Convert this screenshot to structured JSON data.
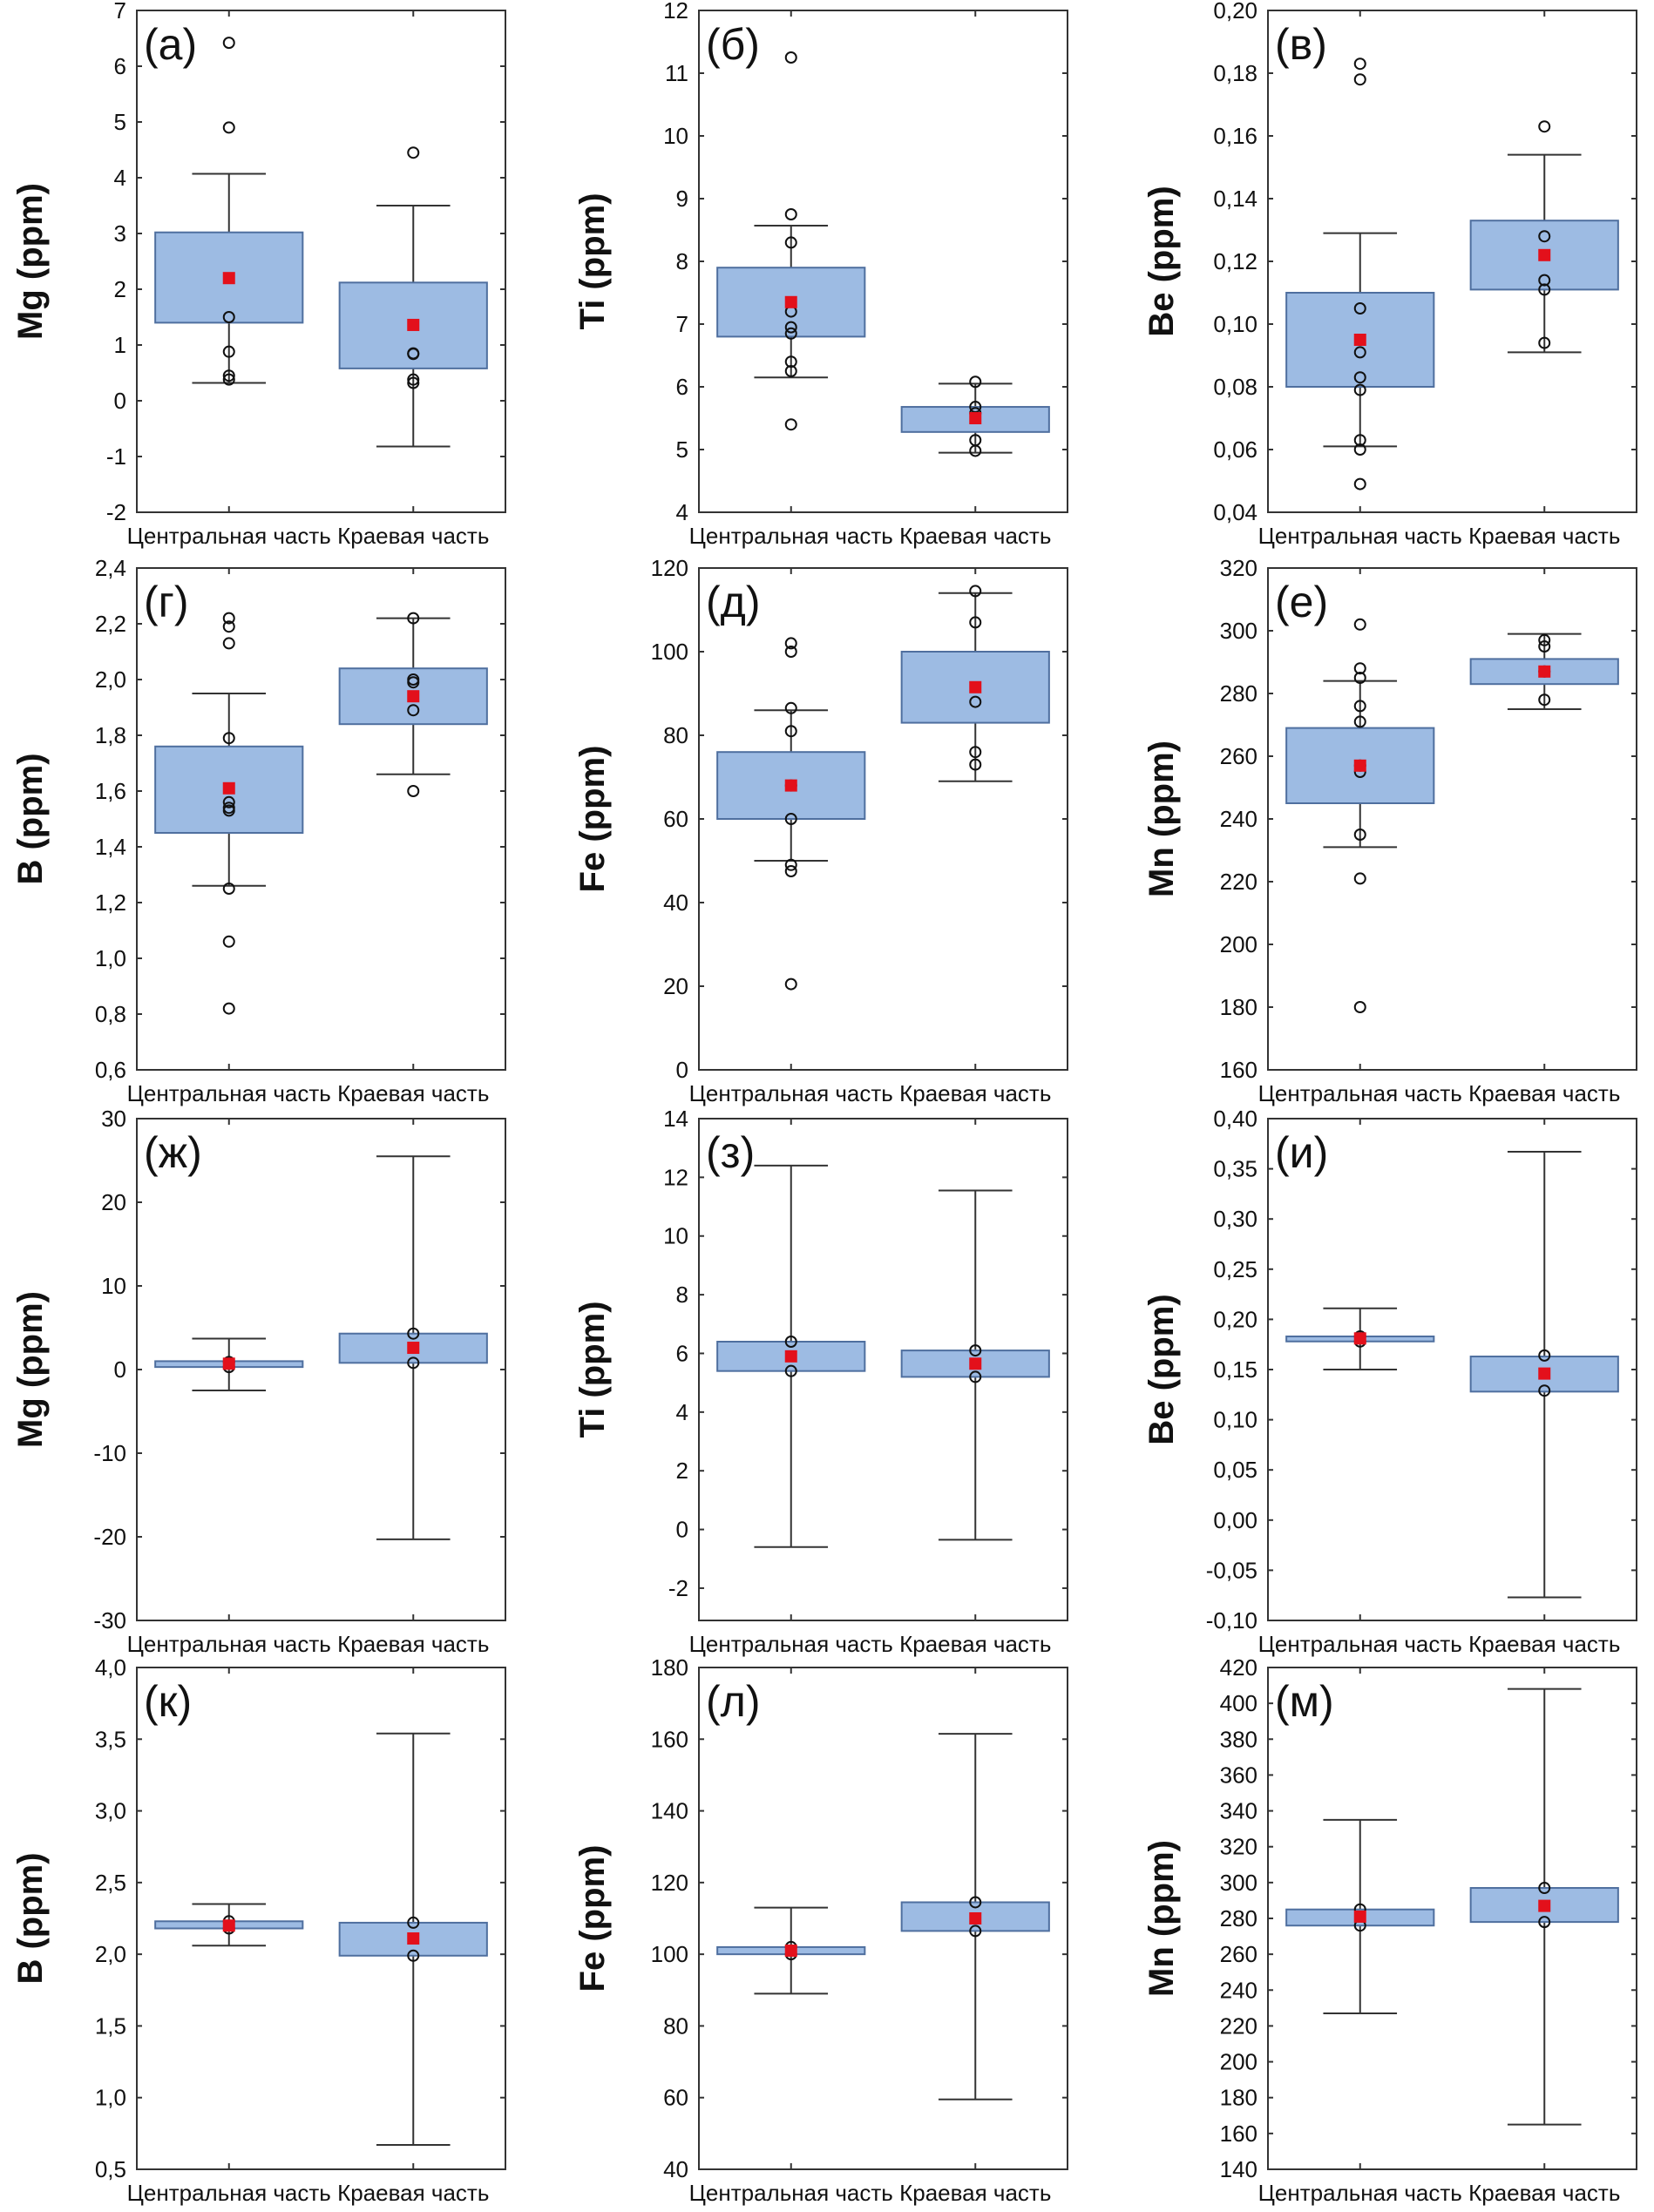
{
  "colors": {
    "box_fill": "#9dbbe3",
    "box_stroke": "#4f6f9f",
    "mean": "#e3101b",
    "line": "#333333"
  },
  "chart_data": [
    {
      "type": "box",
      "panel_label": "(а)",
      "ylabel": "Mg (ppm)",
      "categories": [
        "Центральная часть",
        "Краевая часть"
      ],
      "ylim": [
        -2,
        7
      ],
      "yticks": [
        -2,
        -1,
        0,
        1,
        2,
        3,
        4,
        5,
        6,
        7
      ],
      "ytick_labels": [
        "-2",
        "-1",
        "0",
        "1",
        "2",
        "3",
        "4",
        "5",
        "6",
        "7"
      ],
      "series": [
        {
          "q1": 1.4,
          "q3": 3.02,
          "whisker_low": 0.32,
          "whisker_high": 4.07,
          "mean": 2.2,
          "points": [
            6.42,
            4.9,
            1.5,
            0.88,
            0.45,
            0.38
          ]
        },
        {
          "q1": 0.58,
          "q3": 2.12,
          "whisker_low": -0.82,
          "whisker_high": 3.5,
          "mean": 1.36,
          "points": [
            4.45,
            0.85,
            0.84,
            0.38,
            0.32
          ]
        }
      ]
    },
    {
      "type": "box",
      "panel_label": "(б)",
      "ylabel": "Ti (ppm)",
      "categories": [
        "Центральная часть",
        "Краевая часть"
      ],
      "ylim": [
        4,
        12
      ],
      "yticks": [
        4,
        5,
        6,
        7,
        8,
        9,
        10,
        11,
        12
      ],
      "ytick_labels": [
        "4",
        "5",
        "6",
        "7",
        "8",
        "9",
        "10",
        "11",
        "12"
      ],
      "series": [
        {
          "q1": 6.8,
          "q3": 7.9,
          "whisker_low": 6.15,
          "whisker_high": 8.57,
          "mean": 7.35,
          "points": [
            11.25,
            8.75,
            8.3,
            7.2,
            6.95,
            6.85,
            6.4,
            6.25,
            5.4
          ]
        },
        {
          "q1": 5.28,
          "q3": 5.68,
          "whisker_low": 4.95,
          "whisker_high": 6.05,
          "mean": 5.5,
          "points": [
            6.08,
            5.68,
            5.58,
            5.15,
            4.98
          ]
        }
      ]
    },
    {
      "type": "box",
      "panel_label": "(в)",
      "ylabel": "Be (ppm)",
      "categories": [
        "Центральная часть",
        "Краевая часть"
      ],
      "ylim": [
        0.04,
        0.2
      ],
      "yticks": [
        0.04,
        0.06,
        0.08,
        0.1,
        0.12,
        0.14,
        0.16,
        0.18,
        0.2
      ],
      "ytick_labels": [
        "0,04",
        "0,06",
        "0,08",
        "0,10",
        "0,12",
        "0,14",
        "0,16",
        "0,18",
        "0,20"
      ],
      "series": [
        {
          "q1": 0.08,
          "q3": 0.11,
          "whisker_low": 0.061,
          "whisker_high": 0.129,
          "mean": 0.095,
          "points": [
            0.183,
            0.178,
            0.105,
            0.091,
            0.083,
            0.079,
            0.063,
            0.06,
            0.049
          ]
        },
        {
          "q1": 0.111,
          "q3": 0.133,
          "whisker_low": 0.091,
          "whisker_high": 0.154,
          "mean": 0.122,
          "points": [
            0.163,
            0.128,
            0.114,
            0.111,
            0.094
          ]
        }
      ]
    },
    {
      "type": "box",
      "panel_label": "(г)",
      "ylabel": "B (ppm)",
      "categories": [
        "Центральная часть",
        "Краевая часть"
      ],
      "ylim": [
        0.6,
        2.4
      ],
      "yticks": [
        0.6,
        0.8,
        1.0,
        1.2,
        1.4,
        1.6,
        1.8,
        2.0,
        2.2,
        2.4
      ],
      "ytick_labels": [
        "0,6",
        "0,8",
        "1,0",
        "1,2",
        "1,4",
        "1,6",
        "1,8",
        "2,0",
        "2,2",
        "2,4"
      ],
      "series": [
        {
          "q1": 1.45,
          "q3": 1.76,
          "whisker_low": 1.26,
          "whisker_high": 1.95,
          "mean": 1.61,
          "points": [
            2.22,
            2.19,
            2.13,
            1.79,
            1.56,
            1.54,
            1.53,
            1.25,
            1.06,
            0.82
          ]
        },
        {
          "q1": 1.84,
          "q3": 2.04,
          "whisker_low": 1.66,
          "whisker_high": 2.22,
          "mean": 1.94,
          "points": [
            2.22,
            2.0,
            1.99,
            1.89,
            1.6
          ]
        }
      ]
    },
    {
      "type": "box",
      "panel_label": "(д)",
      "ylabel": "Fe (ppm)",
      "categories": [
        "Центральная часть",
        "Краевая часть"
      ],
      "ylim": [
        0,
        120
      ],
      "yticks": [
        0,
        20,
        40,
        60,
        80,
        100,
        120
      ],
      "ytick_labels": [
        "0",
        "20",
        "40",
        "60",
        "80",
        "100",
        "120"
      ],
      "series": [
        {
          "q1": 60,
          "q3": 76,
          "whisker_low": 50,
          "whisker_high": 86,
          "mean": 68,
          "points": [
            102,
            100,
            86.5,
            81,
            68,
            60,
            49,
            47.5,
            20.5
          ]
        },
        {
          "q1": 83,
          "q3": 100,
          "whisker_low": 69,
          "whisker_high": 114,
          "mean": 91.5,
          "points": [
            114.5,
            107,
            88,
            76,
            73
          ]
        }
      ]
    },
    {
      "type": "box",
      "panel_label": "(е)",
      "ylabel": "Mn (ppm)",
      "categories": [
        "Центральная часть",
        "Краевая часть"
      ],
      "ylim": [
        160,
        320
      ],
      "yticks": [
        160,
        180,
        200,
        220,
        240,
        260,
        280,
        300,
        320
      ],
      "ytick_labels": [
        "160",
        "180",
        "200",
        "220",
        "240",
        "260",
        "280",
        "300",
        "320"
      ],
      "series": [
        {
          "q1": 245,
          "q3": 269,
          "whisker_low": 231,
          "whisker_high": 284,
          "mean": 257,
          "points": [
            302,
            288,
            285,
            276,
            271,
            257,
            255,
            235,
            221,
            180
          ]
        },
        {
          "q1": 283,
          "q3": 291,
          "whisker_low": 275,
          "whisker_high": 299,
          "mean": 287,
          "points": [
            297,
            295,
            287,
            278
          ]
        }
      ]
    },
    {
      "type": "box",
      "panel_label": "(ж)",
      "ylabel": "Mg (ppm)",
      "categories": [
        "Центральная часть",
        "Краевая часть"
      ],
      "ylim": [
        -30,
        30
      ],
      "yticks": [
        -30,
        -20,
        -10,
        0,
        10,
        20,
        30
      ],
      "ytick_labels": [
        "-30",
        "-20",
        "-10",
        "0",
        "10",
        "20",
        "30"
      ],
      "series": [
        {
          "q1": 0.3,
          "q3": 1.0,
          "whisker_low": -2.5,
          "whisker_high": 3.7,
          "mean": 0.7,
          "points": [
            0.9,
            0.3
          ]
        },
        {
          "q1": 0.8,
          "q3": 4.3,
          "whisker_low": -20.3,
          "whisker_high": 25.5,
          "mean": 2.6,
          "points": [
            4.3,
            0.8
          ]
        }
      ]
    },
    {
      "type": "box",
      "panel_label": "(з)",
      "ylabel": "Ti (ppm)",
      "categories": [
        "Центральная часть",
        "Краевая часть"
      ],
      "ylim": [
        -3.1,
        14
      ],
      "yticks": [
        -2,
        0,
        2,
        4,
        6,
        8,
        10,
        12,
        14
      ],
      "ytick_labels": [
        "-2",
        "0",
        "2",
        "4",
        "6",
        "8",
        "10",
        "12",
        "14"
      ],
      "series": [
        {
          "q1": 5.4,
          "q3": 6.4,
          "whisker_low": -0.6,
          "whisker_high": 12.4,
          "mean": 5.9,
          "points": [
            6.4,
            5.4
          ]
        },
        {
          "q1": 5.2,
          "q3": 6.1,
          "whisker_low": -0.35,
          "whisker_high": 11.55,
          "mean": 5.65,
          "points": [
            6.1,
            5.2
          ]
        }
      ]
    },
    {
      "type": "box",
      "panel_label": "(и)",
      "ylabel": "Be (ppm)",
      "categories": [
        "Центральная часть",
        "Краевая часть"
      ],
      "ylim": [
        -0.1,
        0.4
      ],
      "yticks": [
        -0.1,
        -0.05,
        0,
        0.05,
        0.1,
        0.15,
        0.2,
        0.25,
        0.3,
        0.35,
        0.4
      ],
      "ytick_labels": [
        "-0,10",
        "-0,05",
        "0,00",
        "0,05",
        "0,10",
        "0,15",
        "0,20",
        "0,25",
        "0,30",
        "0,35",
        "0,40"
      ],
      "series": [
        {
          "q1": 0.178,
          "q3": 0.183,
          "whisker_low": 0.15,
          "whisker_high": 0.211,
          "mean": 0.181,
          "points": [
            0.183,
            0.178
          ]
        },
        {
          "q1": 0.128,
          "q3": 0.163,
          "whisker_low": -0.077,
          "whisker_high": 0.367,
          "mean": 0.146,
          "points": [
            0.164,
            0.129
          ]
        }
      ]
    },
    {
      "type": "box",
      "panel_label": "(к)",
      "ylabel": "B (ppm)",
      "categories": [
        "Центральная часть",
        "Краевая часть"
      ],
      "ylim": [
        0.5,
        4.0
      ],
      "yticks": [
        0.5,
        1.0,
        1.5,
        2.0,
        2.5,
        3.0,
        3.5,
        4.0
      ],
      "ytick_labels": [
        "0,5",
        "1,0",
        "1,5",
        "2,0",
        "2,5",
        "3,0",
        "3,5",
        "4,0"
      ],
      "series": [
        {
          "q1": 2.18,
          "q3": 2.23,
          "whisker_low": 2.06,
          "whisker_high": 2.35,
          "mean": 2.2,
          "points": [
            2.23,
            2.18
          ]
        },
        {
          "q1": 1.99,
          "q3": 2.22,
          "whisker_low": 0.67,
          "whisker_high": 3.54,
          "mean": 2.11,
          "points": [
            2.22,
            1.99
          ]
        }
      ]
    },
    {
      "type": "box",
      "panel_label": "(л)",
      "ylabel": "Fe (ppm)",
      "categories": [
        "Центральная часть",
        "Краевая часть"
      ],
      "ylim": [
        40,
        180
      ],
      "yticks": [
        40,
        60,
        80,
        100,
        120,
        140,
        160,
        180
      ],
      "ytick_labels": [
        "40",
        "60",
        "80",
        "100",
        "120",
        "140",
        "160",
        "180"
      ],
      "series": [
        {
          "q1": 100,
          "q3": 102,
          "whisker_low": 89,
          "whisker_high": 113,
          "mean": 101,
          "points": [
            102,
            100
          ]
        },
        {
          "q1": 106.5,
          "q3": 114.5,
          "whisker_low": 59.5,
          "whisker_high": 161.5,
          "mean": 110,
          "points": [
            114.5,
            106.5
          ]
        }
      ]
    },
    {
      "type": "box",
      "panel_label": "(м)",
      "ylabel": "Mn (ppm)",
      "categories": [
        "Центральная часть",
        "Краевая часть"
      ],
      "ylim": [
        140,
        420
      ],
      "yticks": [
        140,
        160,
        180,
        200,
        220,
        240,
        260,
        280,
        300,
        320,
        340,
        360,
        380,
        400,
        420
      ],
      "ytick_labels": [
        "140",
        "160",
        "180",
        "200",
        "220",
        "240",
        "260",
        "280",
        "300",
        "320",
        "340",
        "360",
        "380",
        "400",
        "420"
      ],
      "series": [
        {
          "q1": 276,
          "q3": 285,
          "whisker_low": 227,
          "whisker_high": 335,
          "mean": 281,
          "points": [
            285,
            276
          ]
        },
        {
          "q1": 278,
          "q3": 297,
          "whisker_low": 165,
          "whisker_high": 408,
          "mean": 287,
          "points": [
            297,
            278
          ]
        }
      ]
    }
  ]
}
